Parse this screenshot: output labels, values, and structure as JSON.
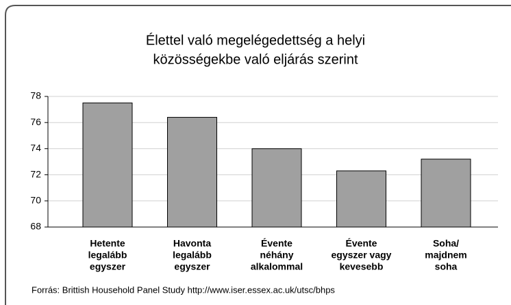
{
  "chart_data": {
    "type": "bar",
    "title": [
      "Élettel való megelégedettség a helyi",
      "közösségekbe való eljárás szerint"
    ],
    "categories": [
      [
        "Hetente",
        "legalább",
        "egyszer"
      ],
      [
        "Havonta",
        "legalább",
        "egyszer"
      ],
      [
        "Évente",
        "néhány",
        "alkalommal"
      ],
      [
        "Évente",
        "egyszer vagy",
        "kevesebb"
      ],
      [
        "Soha/",
        "majdnem",
        "soha"
      ]
    ],
    "values": [
      77.5,
      76.4,
      74.0,
      72.3,
      73.2
    ],
    "color": "#a0a0a0",
    "ylim": [
      68,
      78
    ],
    "yticks": [
      68,
      70,
      72,
      74,
      76,
      78
    ],
    "grid": true,
    "source": "Forrás: Brittish Household Panel Study  http://www.iser.essex.ac.uk/utsc/bhps"
  }
}
